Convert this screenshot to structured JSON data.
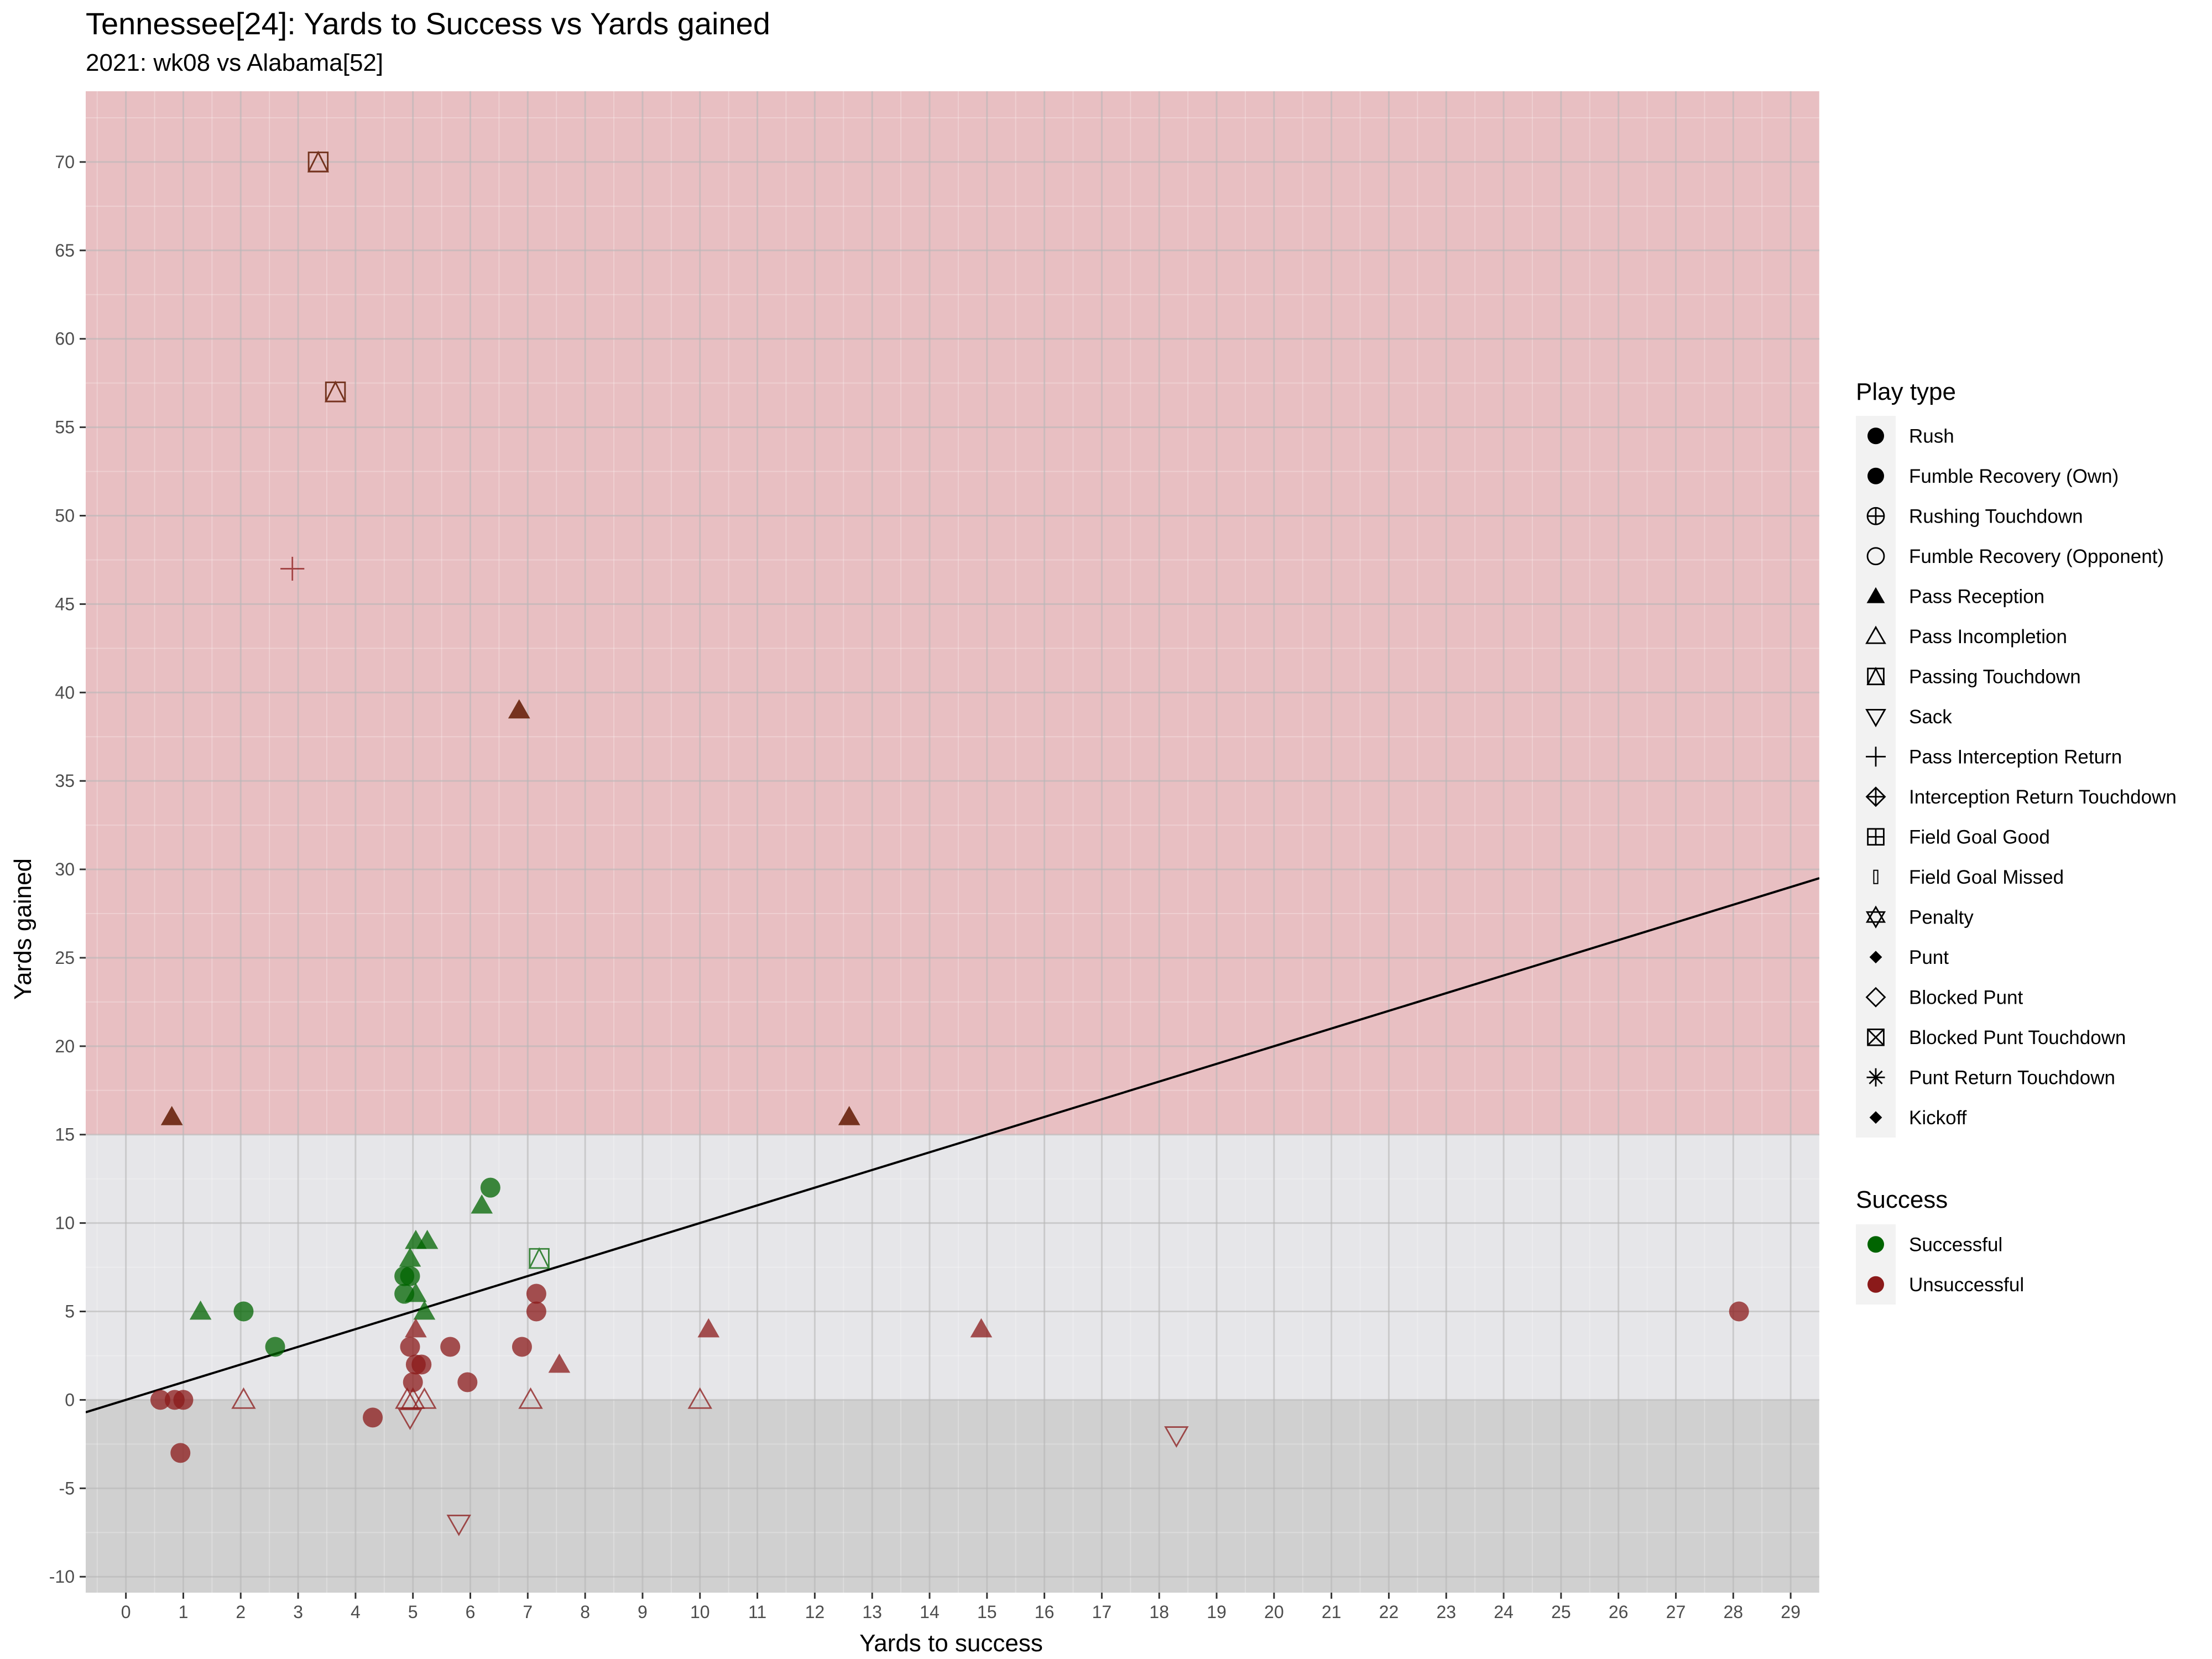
{
  "chart_data": {
    "type": "scatter",
    "title": "Tennessee[24]: Yards to Success vs Yards gained",
    "subtitle": "2021: wk08 vs Alabama[52]",
    "xlabel": "Yards to success",
    "ylabel": "Yards gained",
    "xlim": [
      -0.7,
      29.5
    ],
    "ylim": [
      -10.9,
      74
    ],
    "x_ticks": [
      "0",
      "1",
      "2",
      "3",
      "4",
      "5",
      "6",
      "7",
      "8",
      "9",
      "10",
      "11",
      "12",
      "13",
      "14",
      "15",
      "16",
      "17",
      "18",
      "19",
      "20",
      "21",
      "22",
      "23",
      "24",
      "25",
      "26",
      "27",
      "28",
      "29"
    ],
    "y_ticks": [
      "-10",
      "-5",
      "0",
      "5",
      "10",
      "15",
      "20",
      "25",
      "30",
      "35",
      "40",
      "45",
      "50",
      "55",
      "60",
      "65",
      "70"
    ],
    "bands": [
      {
        "from": -10.9,
        "to": 0,
        "color": "#d0d0d0"
      },
      {
        "from": 0,
        "to": 15,
        "color": "#e6e6e9"
      },
      {
        "from": 15,
        "to": 74,
        "color": "#e8bfc2"
      }
    ],
    "reference_line": {
      "slope": 1,
      "intercept": 0
    },
    "colors": {
      "successful": "#006400",
      "unsuccessful": "#8b1a1a"
    },
    "legend_play_type": {
      "title": "Play type",
      "items": [
        {
          "label": "Rush",
          "icon": "filled-circle"
        },
        {
          "label": "Fumble Recovery (Own)",
          "icon": "filled-circle"
        },
        {
          "label": "Rushing Touchdown",
          "icon": "circle-plus"
        },
        {
          "label": "Fumble Recovery (Opponent)",
          "icon": "open-circle"
        },
        {
          "label": "Pass Reception",
          "icon": "filled-triangle"
        },
        {
          "label": "Pass Incompletion",
          "icon": "open-triangle"
        },
        {
          "label": "Passing Touchdown",
          "icon": "square-triangle"
        },
        {
          "label": "Sack",
          "icon": "open-triangle-down"
        },
        {
          "label": "Pass Interception Return",
          "icon": "plus"
        },
        {
          "label": "Interception Return Touchdown",
          "icon": "diamond-plus"
        },
        {
          "label": "Field Goal Good",
          "icon": "square-plus"
        },
        {
          "label": "Field Goal Missed",
          "icon": "thin-rect"
        },
        {
          "label": "Penalty",
          "icon": "star-of-david"
        },
        {
          "label": "Punt",
          "icon": "filled-diamond-small"
        },
        {
          "label": "Blocked Punt",
          "icon": "open-diamond"
        },
        {
          "label": "Blocked Punt Touchdown",
          "icon": "square-x"
        },
        {
          "label": "Punt Return Touchdown",
          "icon": "asterisk"
        },
        {
          "label": "Kickoff",
          "icon": "filled-diamond-small"
        }
      ]
    },
    "legend_success": {
      "title": "Success",
      "items": [
        {
          "label": "Successful",
          "color": "#006400"
        },
        {
          "label": "Unsuccessful",
          "color": "#8b1a1a"
        }
      ]
    },
    "points": [
      {
        "x": 3.35,
        "y": 70,
        "shape": "square-triangle",
        "success": "Successful"
      },
      {
        "x": 3.35,
        "y": 70,
        "shape": "square-triangle",
        "success": "Unsuccessful"
      },
      {
        "x": 3.65,
        "y": 57,
        "shape": "square-triangle",
        "success": "Successful"
      },
      {
        "x": 3.65,
        "y": 57,
        "shape": "square-triangle",
        "success": "Unsuccessful"
      },
      {
        "x": 2.9,
        "y": 47,
        "shape": "plus",
        "success": "Unsuccessful"
      },
      {
        "x": 6.85,
        "y": 39,
        "shape": "filled-triangle",
        "success": "Successful"
      },
      {
        "x": 6.85,
        "y": 39,
        "shape": "filled-triangle",
        "success": "Unsuccessful"
      },
      {
        "x": 0.8,
        "y": 16,
        "shape": "filled-triangle",
        "success": "Successful"
      },
      {
        "x": 0.8,
        "y": 16,
        "shape": "filled-triangle",
        "success": "Unsuccessful"
      },
      {
        "x": 12.6,
        "y": 16,
        "shape": "filled-triangle",
        "success": "Successful"
      },
      {
        "x": 12.6,
        "y": 16,
        "shape": "filled-triangle",
        "success": "Unsuccessful"
      },
      {
        "x": 6.35,
        "y": 12,
        "shape": "filled-circle",
        "success": "Successful"
      },
      {
        "x": 6.2,
        "y": 11,
        "shape": "filled-triangle",
        "success": "Successful"
      },
      {
        "x": 5.05,
        "y": 9,
        "shape": "filled-triangle",
        "success": "Successful"
      },
      {
        "x": 5.25,
        "y": 9,
        "shape": "filled-triangle",
        "success": "Successful"
      },
      {
        "x": 4.95,
        "y": 8,
        "shape": "filled-triangle",
        "success": "Successful"
      },
      {
        "x": 7.2,
        "y": 8,
        "shape": "square-triangle",
        "success": "Successful"
      },
      {
        "x": 4.85,
        "y": 7,
        "shape": "filled-circle",
        "success": "Successful"
      },
      {
        "x": 4.95,
        "y": 7,
        "shape": "filled-circle",
        "success": "Successful"
      },
      {
        "x": 4.85,
        "y": 6,
        "shape": "filled-circle",
        "success": "Successful"
      },
      {
        "x": 5.05,
        "y": 6,
        "shape": "filled-triangle",
        "success": "Successful"
      },
      {
        "x": 1.3,
        "y": 5,
        "shape": "filled-triangle",
        "success": "Successful"
      },
      {
        "x": 2.05,
        "y": 5,
        "shape": "filled-circle",
        "success": "Successful"
      },
      {
        "x": 5.2,
        "y": 5,
        "shape": "filled-triangle",
        "success": "Successful"
      },
      {
        "x": 2.6,
        "y": 3,
        "shape": "filled-circle",
        "success": "Successful"
      },
      {
        "x": 7.15,
        "y": 6,
        "shape": "filled-circle",
        "success": "Unsuccessful"
      },
      {
        "x": 7.15,
        "y": 5,
        "shape": "filled-circle",
        "success": "Unsuccessful"
      },
      {
        "x": 28.1,
        "y": 5,
        "shape": "filled-circle",
        "success": "Unsuccessful"
      },
      {
        "x": 5.05,
        "y": 4,
        "shape": "filled-triangle",
        "success": "Unsuccessful"
      },
      {
        "x": 10.15,
        "y": 4,
        "shape": "filled-triangle",
        "success": "Unsuccessful"
      },
      {
        "x": 14.9,
        "y": 4,
        "shape": "filled-triangle",
        "success": "Unsuccessful"
      },
      {
        "x": 4.95,
        "y": 3,
        "shape": "filled-circle",
        "success": "Unsuccessful"
      },
      {
        "x": 5.65,
        "y": 3,
        "shape": "filled-circle",
        "success": "Unsuccessful"
      },
      {
        "x": 6.9,
        "y": 3,
        "shape": "filled-circle",
        "success": "Unsuccessful"
      },
      {
        "x": 5.05,
        "y": 2,
        "shape": "filled-circle",
        "success": "Unsuccessful"
      },
      {
        "x": 5.15,
        "y": 2,
        "shape": "filled-circle",
        "success": "Unsuccessful"
      },
      {
        "x": 7.55,
        "y": 2,
        "shape": "filled-triangle",
        "success": "Unsuccessful"
      },
      {
        "x": 5.0,
        "y": 1,
        "shape": "filled-circle",
        "success": "Unsuccessful"
      },
      {
        "x": 5.95,
        "y": 1,
        "shape": "filled-circle",
        "success": "Unsuccessful"
      },
      {
        "x": 0.6,
        "y": 0,
        "shape": "filled-circle",
        "success": "Unsuccessful"
      },
      {
        "x": 0.85,
        "y": 0,
        "shape": "filled-circle",
        "success": "Unsuccessful"
      },
      {
        "x": 1.0,
        "y": 0,
        "shape": "filled-circle",
        "success": "Unsuccessful"
      },
      {
        "x": 2.05,
        "y": 0,
        "shape": "open-triangle",
        "success": "Unsuccessful"
      },
      {
        "x": 4.9,
        "y": 0,
        "shape": "open-triangle",
        "success": "Unsuccessful"
      },
      {
        "x": 5.0,
        "y": 0,
        "shape": "open-triangle",
        "success": "Unsuccessful"
      },
      {
        "x": 5.2,
        "y": 0,
        "shape": "open-triangle",
        "success": "Unsuccessful"
      },
      {
        "x": 7.05,
        "y": 0,
        "shape": "open-triangle",
        "success": "Unsuccessful"
      },
      {
        "x": 10.0,
        "y": 0,
        "shape": "open-triangle",
        "success": "Unsuccessful"
      },
      {
        "x": 4.3,
        "y": -1,
        "shape": "filled-circle",
        "success": "Unsuccessful"
      },
      {
        "x": 4.95,
        "y": -1,
        "shape": "open-triangle-down",
        "success": "Unsuccessful"
      },
      {
        "x": 0.95,
        "y": -3,
        "shape": "filled-circle",
        "success": "Unsuccessful"
      },
      {
        "x": 18.3,
        "y": -2,
        "shape": "open-triangle-down",
        "success": "Unsuccessful"
      },
      {
        "x": 5.8,
        "y": -7,
        "shape": "open-triangle-down",
        "success": "Unsuccessful"
      }
    ]
  }
}
